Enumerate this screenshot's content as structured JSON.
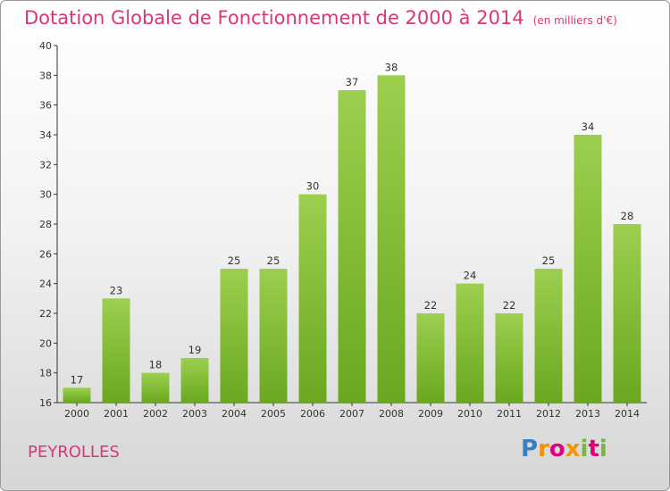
{
  "header": {
    "title": "Dotation Globale de Fonctionnement de 2000 à 2014",
    "subtitle": "(en milliers d'€)"
  },
  "footer": {
    "commune": "PEYROLLES",
    "logo_text": "Proxiti"
  },
  "colors": {
    "bar_top": "#9ccf4e",
    "bar_bottom": "#6aa81f",
    "title": "#d8377a"
  },
  "chart_data": {
    "type": "bar",
    "categories": [
      "2000",
      "2001",
      "2002",
      "2003",
      "2004",
      "2005",
      "2006",
      "2007",
      "2008",
      "2009",
      "2010",
      "2011",
      "2012",
      "2013",
      "2014"
    ],
    "values": [
      17,
      23,
      18,
      19,
      25,
      25,
      30,
      37,
      38,
      22,
      24,
      22,
      25,
      34,
      28
    ],
    "ylim": [
      16,
      40
    ],
    "yticks": [
      16,
      18,
      20,
      22,
      24,
      26,
      28,
      30,
      32,
      34,
      36,
      38,
      40
    ],
    "grid": false,
    "legend": "none"
  }
}
